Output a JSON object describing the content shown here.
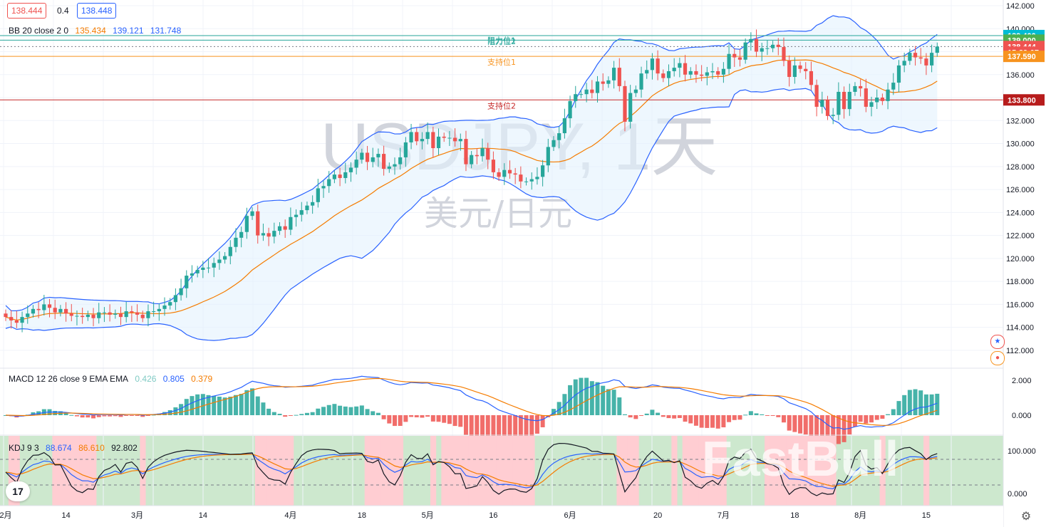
{
  "header": {
    "bid": "138.444",
    "spread": "0.4",
    "ask": "138.448",
    "bid_color": "#ef5350",
    "ask_color": "#2962ff"
  },
  "bb_legend": {
    "label": "BB 20 close 2 0",
    "basis": "135.434",
    "upper": "139.121",
    "lower": "131.748"
  },
  "macd_legend": {
    "label": "MACD 12 26 close 9 EMA EMA",
    "hist": "0.426",
    "macd": "0.805",
    "signal": "0.379"
  },
  "kdj_legend": {
    "label": "KDJ 9 3",
    "k": "88.674",
    "d": "86.610",
    "j": "92.802"
  },
  "watermark": {
    "symbol": "USDJPY, 1天",
    "name": "美元/日元",
    "brand": "FastBull"
  },
  "levels": [
    {
      "label": "阻力位2",
      "price": 139.4,
      "color": "#26a69a"
    },
    {
      "label": "阻力位1",
      "price": 139.0,
      "color": "#26a69a"
    },
    {
      "label": "支持位1",
      "price": 137.59,
      "color": "#f7931e"
    },
    {
      "label": "支持位2",
      "price": 133.8,
      "color": "#c62828"
    }
  ],
  "price_tags": [
    {
      "text": "139.400",
      "price": 139.4,
      "bg": "#00bcd4"
    },
    {
      "text": "139.000",
      "price": 139.0,
      "bg": "#4caf50"
    },
    {
      "text": "138.444",
      "price": 138.444,
      "bg": "#ef5350"
    },
    {
      "text": "15:29:07",
      "price": 137.95,
      "bg": "#ef5350"
    },
    {
      "text": "137.590",
      "price": 137.59,
      "bg": "#f7931e"
    },
    {
      "text": "133.800",
      "price": 133.8,
      "bg": "#b71c1c"
    }
  ],
  "price_axis": [
    "142.000",
    "140.000",
    "138.000",
    "136.000",
    "134.000",
    "132.000",
    "130.000",
    "128.000",
    "126.000",
    "124.000",
    "122.000",
    "120.000",
    "118.000",
    "116.000",
    "114.000",
    "112.000"
  ],
  "macd_axis": [
    "2.000",
    "0.000"
  ],
  "kdj_axis": [
    "100.000",
    "0.000"
  ],
  "time_axis": [
    "2月",
    "14",
    "3月",
    "14",
    "4月",
    "18",
    "5月",
    "16",
    "6月",
    "20",
    "7月",
    "18",
    "8月",
    "15"
  ],
  "colors": {
    "up": "#26a69a",
    "down": "#ef5350",
    "bb": "#2962ff",
    "basis": "#f57c00"
  },
  "chart_data": {
    "type": "candlestick",
    "symbol": "USDJPY",
    "ylim": [
      111,
      142
    ],
    "closes": [
      114.9,
      114.6,
      114.4,
      114.9,
      115.2,
      115.6,
      115.5,
      116.0,
      115.7,
      115.3,
      115.6,
      115.2,
      115.0,
      115.0,
      114.9,
      115.1,
      114.8,
      115.3,
      115.3,
      115.1,
      115.2,
      114.9,
      115.4,
      115.3,
      115.1,
      114.8,
      115.4,
      115.4,
      115.6,
      115.9,
      116.2,
      116.8,
      117.4,
      118.5,
      118.7,
      119.0,
      119.2,
      119.2,
      119.6,
      119.9,
      120.2,
      121.0,
      121.8,
      122.3,
      123.7,
      124.1,
      122.0,
      122.2,
      121.9,
      122.4,
      122.8,
      122.5,
      123.6,
      123.8,
      124.2,
      124.6,
      124.9,
      126.1,
      126.3,
      126.9,
      127.3,
      127.0,
      127.5,
      127.9,
      128.6,
      129.2,
      128.4,
      128.8,
      129.1,
      127.8,
      128.0,
      128.2,
      128.8,
      130.1,
      131.0,
      130.2,
      130.4,
      131.0,
      129.6,
      130.6,
      130.5,
      130.5,
      130.2,
      130.4,
      128.2,
      129.0,
      128.9,
      129.6,
      128.6,
      127.5,
      127.1,
      127.7,
      127.4,
      127.3,
      126.7,
      126.7,
      126.9,
      127.1,
      128.1,
      129.7,
      130.3,
      130.9,
      132.2,
      133.7,
      134.3,
      134.3,
      134.7,
      134.4,
      135.4,
      135.2,
      135.5,
      136.6,
      135.0,
      131.9,
      134.4,
      134.7,
      136.1,
      136.4,
      137.4,
      136.1,
      135.7,
      136.3,
      136.6,
      137.0,
      136.0,
      136.3,
      136.0,
      135.9,
      136.2,
      136.3,
      136.0,
      136.5,
      137.8,
      137.5,
      137.3,
      138.8,
      139.1,
      138.0,
      138.3,
      138.3,
      138.6,
      138.4,
      137.2,
      135.8,
      136.8,
      136.5,
      136.3,
      135.1,
      133.2,
      133.8,
      132.4,
      132.5,
      134.5,
      133.0,
      134.5,
      135.0,
      134.8,
      133.2,
      133.6,
      134.0,
      133.7,
      134.7,
      135.3,
      136.8,
      137.2,
      137.9,
      137.5,
      137.4,
      136.8,
      137.9,
      138.444
    ]
  }
}
